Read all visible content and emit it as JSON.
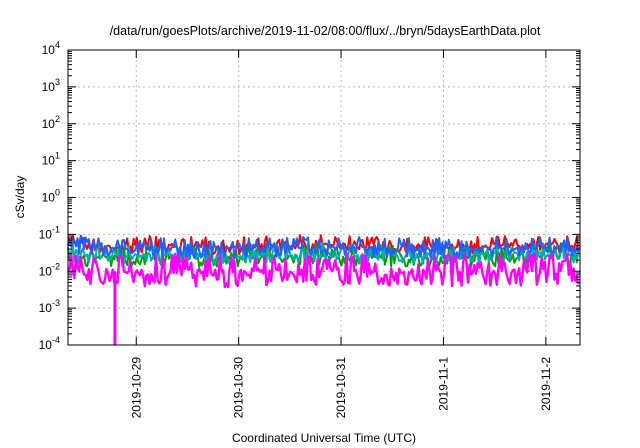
{
  "chart_data": {
    "type": "line",
    "title": "/data/run/goesPlots/archive/2019-11-02/08:00/flux/../bryn/5daysEarthData.plot",
    "xlabel": "Coordinated Universal Time (UTC)",
    "ylabel": "cSv/day",
    "y_scale": "log",
    "ylim": [
      0.0001,
      10000
    ],
    "xlim": [
      "2019-10-28 08:00",
      "2019-11-02 08:00"
    ],
    "grid": true,
    "legend": "none",
    "y_ticks": [
      {
        "base": "10",
        "exp": "-4"
      },
      {
        "base": "10",
        "exp": "-3"
      },
      {
        "base": "10",
        "exp": "-2"
      },
      {
        "base": "10",
        "exp": "-1"
      },
      {
        "base": "10",
        "exp": "0"
      },
      {
        "base": "10",
        "exp": "1"
      },
      {
        "base": "10",
        "exp": "2"
      },
      {
        "base": "10",
        "exp": "3"
      },
      {
        "base": "10",
        "exp": "4"
      }
    ],
    "x_ticks": [
      {
        "label": "2019-10-29",
        "value": "2019-10-29 00:00"
      },
      {
        "label": "2019-10-30",
        "value": "2019-10-30 00:00"
      },
      {
        "label": "2019-10-31",
        "value": "2019-10-31 00:00"
      },
      {
        "label": "2019-11-1",
        "value": "2019-11-01 00:00"
      },
      {
        "label": "2019-11-2",
        "value": "2019-11-02 00:00"
      }
    ],
    "series": [
      {
        "color": "#ff0000",
        "x": [
          "2019-10-28 08:00",
          "2019-10-28 20:00",
          "2019-10-29 08:00",
          "2019-10-29 20:00",
          "2019-10-30 08:00",
          "2019-10-30 20:00",
          "2019-10-31 08:00",
          "2019-10-31 20:00",
          "2019-11-01 08:00",
          "2019-11-01 20:00",
          "2019-11-02 08:00"
        ],
        "y": [
          0.055,
          0.05,
          0.05,
          0.045,
          0.05,
          0.052,
          0.05,
          0.048,
          0.05,
          0.052,
          0.055
        ]
      },
      {
        "color": "#00a000",
        "x": [
          "2019-10-28 08:00",
          "2019-10-28 20:00",
          "2019-10-29 08:00",
          "2019-10-29 20:00",
          "2019-10-30 08:00",
          "2019-10-30 20:00",
          "2019-10-31 08:00",
          "2019-10-31 20:00",
          "2019-11-01 08:00",
          "2019-11-01 20:00",
          "2019-11-02 08:00"
        ],
        "y": [
          0.025,
          0.024,
          0.024,
          0.022,
          0.024,
          0.025,
          0.024,
          0.023,
          0.024,
          0.025,
          0.026
        ]
      },
      {
        "color": "#00b0b0",
        "x": [
          "2019-10-28 08:00",
          "2019-10-28 20:00",
          "2019-10-29 08:00",
          "2019-10-29 20:00",
          "2019-10-30 08:00",
          "2019-10-30 20:00",
          "2019-10-31 08:00",
          "2019-10-31 20:00",
          "2019-11-01 08:00",
          "2019-11-01 20:00",
          "2019-11-02 08:00"
        ],
        "y": [
          0.03,
          0.028,
          0.028,
          0.026,
          0.028,
          0.03,
          0.028,
          0.027,
          0.028,
          0.03,
          0.03
        ]
      },
      {
        "color": "#2060ff",
        "x": [
          "2019-10-28 08:00",
          "2019-10-28 20:00",
          "2019-10-29 08:00",
          "2019-10-29 20:00",
          "2019-10-30 08:00",
          "2019-10-30 20:00",
          "2019-10-31 08:00",
          "2019-10-31 20:00",
          "2019-11-01 08:00",
          "2019-11-01 20:00",
          "2019-11-02 08:00"
        ],
        "y": [
          0.045,
          0.042,
          0.042,
          0.038,
          0.042,
          0.044,
          0.042,
          0.04,
          0.042,
          0.044,
          0.046
        ]
      },
      {
        "color": "#ff00ff",
        "x": [
          "2019-10-28 08:00",
          "2019-10-28 20:00",
          "2019-10-29 08:00",
          "2019-10-29 20:00",
          "2019-10-30 08:00",
          "2019-10-30 20:00",
          "2019-10-31 08:00",
          "2019-10-31 20:00",
          "2019-11-01 08:00",
          "2019-11-01 20:00",
          "2019-11-02 08:00"
        ],
        "y": [
          0.01,
          0.009,
          0.01,
          0.009,
          0.01,
          0.01,
          0.01,
          0.009,
          0.01,
          0.01,
          0.01
        ]
      }
    ]
  }
}
